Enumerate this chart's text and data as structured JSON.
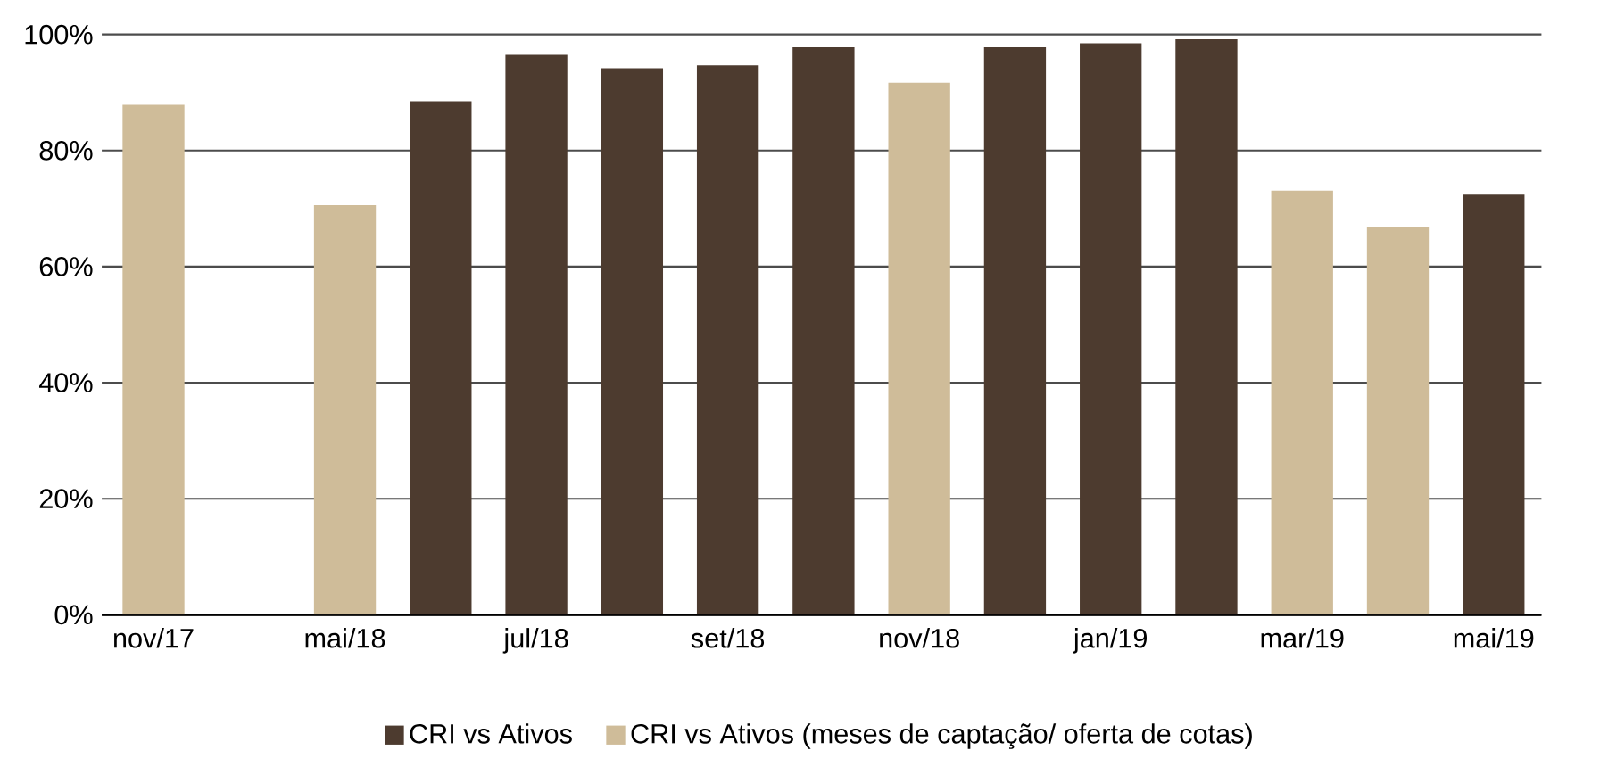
{
  "chart_data": {
    "type": "bar",
    "categories": [
      "nov/17",
      null,
      "mai/18",
      null,
      "jul/18",
      null,
      "set/18",
      null,
      "nov/18",
      null,
      "jan/19",
      null,
      "mar/19",
      null,
      "mai/19"
    ],
    "series": [
      {
        "name": "CRI vs Ativos",
        "color": "#4d3b2f",
        "values": [
          null,
          null,
          null,
          88.5,
          96.5,
          94.2,
          94.7,
          97.8,
          null,
          97.8,
          98.5,
          99.2,
          null,
          null,
          72.4
        ]
      },
      {
        "name": "CRI vs Ativos (meses de captação/ oferta de cotas)",
        "color": "#cfbc99",
        "values": [
          87.9,
          null,
          70.6,
          null,
          null,
          null,
          null,
          null,
          91.7,
          null,
          null,
          null,
          73.1,
          66.8,
          null
        ]
      }
    ],
    "ylim": [
      0,
      100
    ],
    "yticks": [
      {
        "value": 0,
        "label": "0%"
      },
      {
        "value": 20,
        "label": "20%"
      },
      {
        "value": 40,
        "label": "40%"
      },
      {
        "value": 60,
        "label": "60%"
      },
      {
        "value": 80,
        "label": "80%"
      },
      {
        "value": 100,
        "label": "100%"
      }
    ],
    "grid": "y",
    "legend": "bottom"
  }
}
